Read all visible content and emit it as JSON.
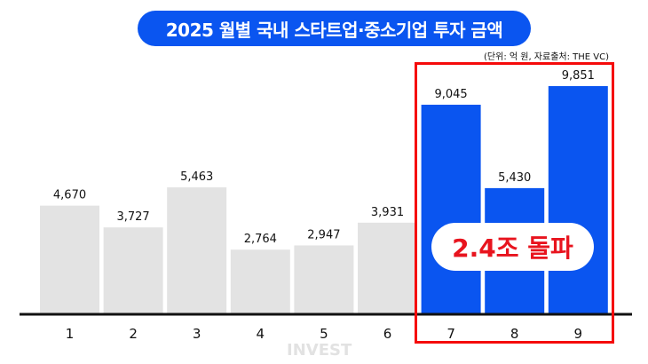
{
  "chart_data": {
    "type": "bar",
    "title": "2025 월별 국내 스타트업·중소기업 투자 금액",
    "subtitle": "(단위: 억 원, 자료출처: THE VC)",
    "categories": [
      "1",
      "2",
      "3",
      "4",
      "5",
      "6",
      "7",
      "8",
      "9"
    ],
    "values": [
      4670,
      3727,
      5463,
      2764,
      2947,
      3931,
      9045,
      5430,
      9851
    ],
    "value_labels": [
      "4,670",
      "3,727",
      "5,463",
      "2,764",
      "2,947",
      "3,931",
      "9,045",
      "5,430",
      "9,851"
    ],
    "highlighted": [
      "7",
      "8",
      "9"
    ],
    "annotation": "2.4조 돌파",
    "xlabel": "",
    "ylabel": "",
    "ylim": [
      0,
      9851
    ],
    "grid": false,
    "colors": {
      "default": "#e3e3e3",
      "highlight": "#0a55f0",
      "box": "#f50a0a",
      "title_bg": "#0a55f0",
      "annotation": "#e8141e"
    }
  },
  "watermark": "INVEST"
}
